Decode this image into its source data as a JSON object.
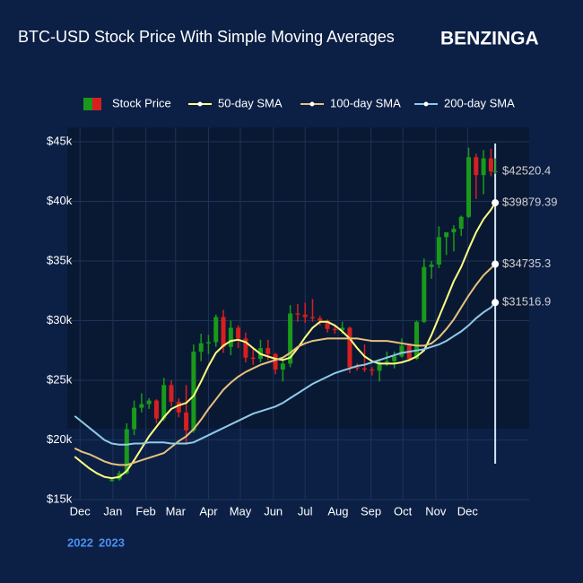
{
  "chart_data": {
    "type": "candlestick",
    "title": "BTC-USD Stock Price With Simple Moving Averages",
    "brand": "BENZINGA",
    "year_labels": [
      "2022",
      "2023"
    ],
    "xlim": [
      "2022-11-19",
      "2024-01-28"
    ],
    "ylim": [
      15000,
      46200
    ],
    "yticks": [
      {
        "value": 15000,
        "label": "$15k"
      },
      {
        "value": 20000,
        "label": "$20k"
      },
      {
        "value": 25000,
        "label": "$25k"
      },
      {
        "value": 30000,
        "label": "$30k"
      },
      {
        "value": 35000,
        "label": "$35k"
      },
      {
        "value": 40000,
        "label": "$40k"
      },
      {
        "value": 45000,
        "label": "$45k"
      }
    ],
    "xticks": [
      {
        "value": "2022-12-01",
        "label": "Dec"
      },
      {
        "value": "2023-01-01",
        "label": "Jan"
      },
      {
        "value": "2023-02-01",
        "label": "Feb"
      },
      {
        "value": "2023-03-01",
        "label": "Mar"
      },
      {
        "value": "2023-04-01",
        "label": "Apr"
      },
      {
        "value": "2023-05-01",
        "label": "May"
      },
      {
        "value": "2023-06-01",
        "label": "Jun"
      },
      {
        "value": "2023-07-01",
        "label": "Jul"
      },
      {
        "value": "2023-08-01",
        "label": "Aug"
      },
      {
        "value": "2023-09-01",
        "label": "Sep"
      },
      {
        "value": "2023-10-01",
        "label": "Oct"
      },
      {
        "value": "2023-11-01",
        "label": "Nov"
      },
      {
        "value": "2023-12-01",
        "label": "Dec"
      }
    ],
    "grid": true,
    "legend": "top",
    "x": [
      "2022-11-26",
      "2022-12-03",
      "2022-12-10",
      "2022-12-17",
      "2022-12-24",
      "2022-12-31",
      "2023-01-07",
      "2023-01-14",
      "2023-01-21",
      "2023-01-28",
      "2023-02-04",
      "2023-02-11",
      "2023-02-18",
      "2023-02-25",
      "2023-03-04",
      "2023-03-11",
      "2023-03-18",
      "2023-03-25",
      "2023-04-01",
      "2023-04-08",
      "2023-04-15",
      "2023-04-22",
      "2023-04-29",
      "2023-05-06",
      "2023-05-13",
      "2023-05-20",
      "2023-05-27",
      "2023-06-03",
      "2023-06-10",
      "2023-06-17",
      "2023-06-24",
      "2023-07-01",
      "2023-07-08",
      "2023-07-15",
      "2023-07-22",
      "2023-07-29",
      "2023-08-05",
      "2023-08-12",
      "2023-08-19",
      "2023-08-26",
      "2023-09-02",
      "2023-09-09",
      "2023-09-16",
      "2023-09-23",
      "2023-09-30",
      "2023-10-07",
      "2023-10-14",
      "2023-10-21",
      "2023-10-28",
      "2023-11-04",
      "2023-11-11",
      "2023-11-18",
      "2023-11-25",
      "2023-12-02",
      "2023-12-09",
      "2023-12-16",
      "2023-12-23",
      "2023-12-27"
    ],
    "series": [
      {
        "name": "Stock Price",
        "kind": "candlestick",
        "increasing_color": "#1a9a1a",
        "decreasing_color": "#d62020",
        "end_label": "$42520.4",
        "open": [
          null,
          null,
          null,
          null,
          null,
          16550,
          16700,
          17200,
          20900,
          22700,
          23000,
          23300,
          21800,
          24600,
          23200,
          22300,
          20800,
          27400,
          28100,
          28200,
          30300,
          27800,
          29400,
          28500,
          26900,
          26800,
          27700,
          27200,
          25900,
          26400,
          30600,
          30500,
          30300,
          30200,
          30000,
          29300,
          29200,
          29400,
          26100,
          26000,
          25900,
          25800,
          26500,
          26600,
          27000,
          27900,
          26800,
          29900,
          34500,
          34700,
          37000,
          37400,
          37700,
          38700,
          43700,
          42200,
          43600,
          42500
        ],
        "high": [
          null,
          null,
          null,
          null,
          null,
          16800,
          17400,
          21400,
          23300,
          23900,
          23500,
          23400,
          25200,
          25000,
          23500,
          24600,
          28000,
          28900,
          28800,
          30500,
          30900,
          30000,
          29600,
          29000,
          27600,
          28400,
          28400,
          27300,
          26900,
          31300,
          31400,
          31500,
          31800,
          30400,
          30100,
          29700,
          29900,
          29500,
          26400,
          28000,
          26100,
          26800,
          27400,
          27400,
          28500,
          28000,
          30000,
          35200,
          35000,
          37900,
          37400,
          38000,
          38800,
          44500,
          44000,
          44300,
          44400,
          43600
        ],
        "low": [
          null,
          null,
          null,
          null,
          null,
          16500,
          16600,
          17100,
          20400,
          22300,
          22600,
          21400,
          21600,
          22800,
          21900,
          19600,
          20600,
          26600,
          27200,
          27800,
          27300,
          27100,
          27700,
          26500,
          26300,
          26500,
          26700,
          25500,
          24900,
          26100,
          29900,
          29800,
          29900,
          29600,
          29000,
          28900,
          28900,
          25600,
          25800,
          25700,
          25400,
          24900,
          26200,
          26000,
          26900,
          26600,
          26700,
          29800,
          33500,
          34400,
          35500,
          35800,
          37100,
          38600,
          40200,
          40600,
          42100,
          42300
        ],
        "close": [
          null,
          null,
          null,
          null,
          null,
          16700,
          17200,
          20900,
          22700,
          23000,
          23300,
          21800,
          24600,
          23200,
          22300,
          20800,
          27400,
          28100,
          28200,
          30300,
          27800,
          29400,
          28500,
          26900,
          26800,
          27700,
          27200,
          25900,
          26400,
          30600,
          30500,
          30300,
          30200,
          30000,
          29300,
          29200,
          29400,
          26100,
          26000,
          25900,
          25800,
          26500,
          26600,
          27000,
          27900,
          26800,
          29900,
          34500,
          34700,
          37000,
          37400,
          37700,
          38700,
          43700,
          42200,
          43600,
          42500,
          42520.4
        ]
      },
      {
        "name": "50-day SMA",
        "kind": "line",
        "color": "#ffff80",
        "end_label": "$39879.39",
        "values": [
          18600,
          18100,
          17600,
          17200,
          16900,
          16800,
          16900,
          17400,
          18300,
          19300,
          20300,
          21100,
          21900,
          22600,
          22900,
          23100,
          23700,
          24900,
          26200,
          27300,
          27900,
          28300,
          28400,
          28200,
          27700,
          27200,
          27000,
          26800,
          26700,
          26900,
          27700,
          28600,
          29400,
          29900,
          29900,
          29600,
          29100,
          28500,
          27700,
          27000,
          26600,
          26400,
          26400,
          26400,
          26500,
          26700,
          27000,
          27500,
          28800,
          30300,
          31800,
          33300,
          34500,
          36000,
          37400,
          38500,
          39300,
          39879.39
        ]
      },
      {
        "name": "100-day SMA",
        "kind": "line",
        "color": "#e6c27e",
        "end_label": "$34735.3",
        "values": [
          19300,
          19000,
          18800,
          18500,
          18200,
          18000,
          17900,
          17900,
          18100,
          18300,
          18500,
          18700,
          18900,
          19400,
          19900,
          20300,
          20900,
          21700,
          22600,
          23400,
          24200,
          24800,
          25300,
          25700,
          26000,
          26300,
          26500,
          26700,
          26900,
          27300,
          27800,
          28100,
          28300,
          28400,
          28500,
          28500,
          28500,
          28500,
          28500,
          28400,
          28300,
          28300,
          28300,
          28200,
          28100,
          28000,
          27900,
          27900,
          28100,
          28600,
          29300,
          30100,
          31100,
          32100,
          33000,
          33800,
          34400,
          34735.3
        ]
      },
      {
        "name": "200-day SMA",
        "kind": "line",
        "color": "#8fcbe8",
        "end_label": "$31516.9",
        "values": [
          22000,
          21500,
          21000,
          20500,
          20000,
          19700,
          19600,
          19600,
          19700,
          19700,
          19800,
          19800,
          19800,
          19700,
          19700,
          19700,
          19800,
          20100,
          20400,
          20700,
          21000,
          21300,
          21600,
          21900,
          22200,
          22400,
          22600,
          22800,
          23100,
          23500,
          23900,
          24300,
          24700,
          25000,
          25300,
          25600,
          25800,
          26000,
          26200,
          26300,
          26500,
          26700,
          26900,
          27100,
          27300,
          27400,
          27500,
          27600,
          27800,
          28000,
          28300,
          28700,
          29100,
          29600,
          30200,
          30700,
          31100,
          31516.9
        ]
      }
    ]
  }
}
